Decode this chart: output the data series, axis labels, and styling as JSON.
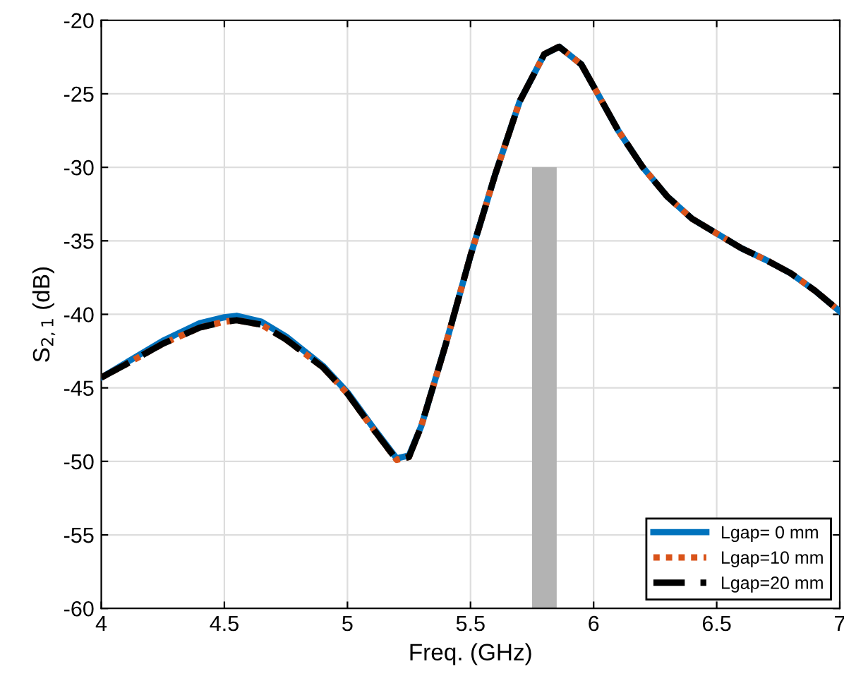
{
  "chart_data": {
    "type": "line",
    "xlabel": "Freq. (GHz)",
    "ylabel": "S$_{2,1}$ (dB)",
    "xlim": [
      4,
      7
    ],
    "ylim": [
      -60,
      -20
    ],
    "xticks": [
      4,
      4.5,
      5,
      5.5,
      6,
      6.5,
      7
    ],
    "yticks": [
      -60,
      -55,
      -50,
      -45,
      -40,
      -35,
      -30,
      -25,
      -20
    ],
    "grid": true,
    "legend": "bottom right",
    "series": [
      {
        "type": "bar",
        "color": "#b3b3b3",
        "x": [
          5.8
        ],
        "base": [
          -60
        ],
        "values": [
          30
        ]
      },
      {
        "name": "Lgap= 0 mm",
        "color": "#0072bd",
        "line_style": "solid",
        "x": [
          4,
          4.1,
          4.25,
          4.4,
          4.5,
          4.55,
          4.65,
          4.75,
          4.9,
          5.0,
          5.1,
          5.2,
          5.25,
          5.3,
          5.4,
          5.5,
          5.6,
          5.7,
          5.8,
          5.86,
          5.95,
          6.0,
          6.1,
          6.2,
          6.3,
          6.4,
          6.5,
          6.6,
          6.7,
          6.8,
          6.9,
          7.0
        ],
        "values": [
          -44.3,
          -43.3,
          -41.8,
          -40.6,
          -40.2,
          -40.1,
          -40.5,
          -41.5,
          -43.5,
          -45.3,
          -47.6,
          -49.8,
          -49.6,
          -47.6,
          -42,
          -36,
          -30.5,
          -25.5,
          -22.3,
          -21.8,
          -23,
          -24.5,
          -27.5,
          -30,
          -32,
          -33.5,
          -34.5,
          -35.5,
          -36.3,
          -37.2,
          -38.4,
          -39.8
        ]
      },
      {
        "name": "Lgap=10 mm",
        "color": "#d95319",
        "line_style": "dotted",
        "x": [
          4,
          4.1,
          4.25,
          4.4,
          4.5,
          4.55,
          4.65,
          4.75,
          4.9,
          5.0,
          5.1,
          5.2,
          5.25,
          5.3,
          5.4,
          5.5,
          5.6,
          5.7,
          5.8,
          5.86,
          5.95,
          6.0,
          6.1,
          6.2,
          6.3,
          6.4,
          6.5,
          6.6,
          6.7,
          6.8,
          6.9,
          7.0
        ],
        "values": [
          -44.3,
          -43.4,
          -42,
          -40.9,
          -40.5,
          -40.4,
          -40.7,
          -41.7,
          -43.6,
          -45.4,
          -47.7,
          -49.9,
          -49.7,
          -47.6,
          -42,
          -36,
          -30.5,
          -25.5,
          -22.3,
          -21.8,
          -23,
          -24.5,
          -27.5,
          -30,
          -32,
          -33.5,
          -34.5,
          -35.5,
          -36.3,
          -37.2,
          -38.4,
          -39.8
        ]
      },
      {
        "name": "Lgap=20 mm",
        "color": "#000000",
        "line_style": "dashed",
        "x": [
          4,
          4.1,
          4.25,
          4.4,
          4.5,
          4.55,
          4.65,
          4.75,
          4.9,
          5.0,
          5.1,
          5.2,
          5.25,
          5.3,
          5.4,
          5.5,
          5.6,
          5.7,
          5.8,
          5.86,
          5.95,
          6.0,
          6.1,
          6.2,
          6.3,
          6.4,
          6.5,
          6.6,
          6.7,
          6.8,
          6.9,
          7.0
        ],
        "values": [
          -44.3,
          -43.4,
          -42,
          -40.9,
          -40.5,
          -40.4,
          -40.7,
          -41.7,
          -43.6,
          -45.4,
          -47.7,
          -49.9,
          -49.7,
          -47.6,
          -42,
          -36,
          -30.5,
          -25.5,
          -22.3,
          -21.8,
          -23,
          -24.5,
          -27.5,
          -30,
          -32,
          -33.5,
          -34.5,
          -35.5,
          -36.3,
          -37.2,
          -38.4,
          -39.8
        ]
      }
    ]
  }
}
